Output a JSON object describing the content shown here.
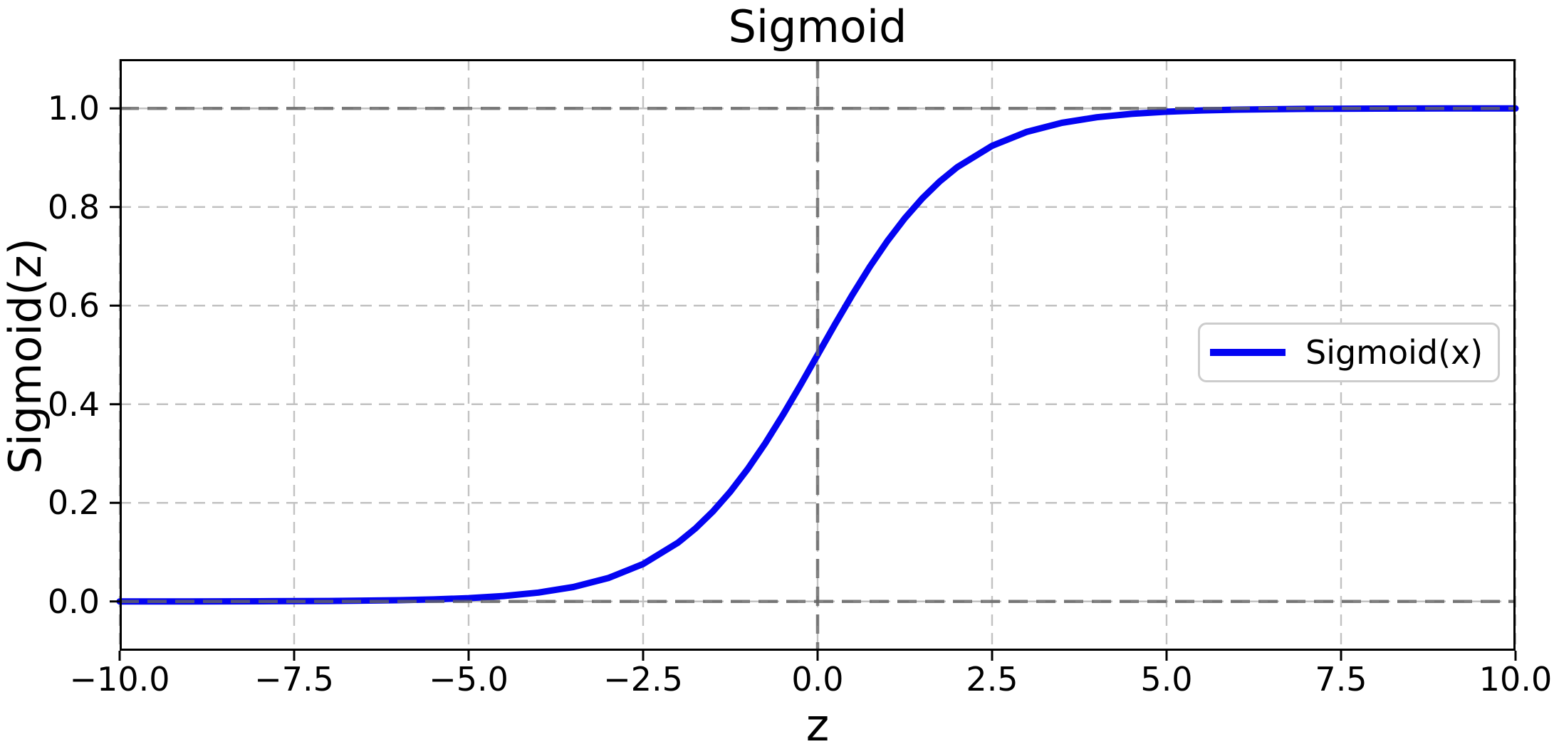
{
  "chart_data": {
    "type": "line",
    "title": "Sigmoid",
    "xlabel": "z",
    "ylabel": "Sigmoid(z)",
    "xlim": [
      -10,
      10
    ],
    "ylim": [
      -0.1,
      1.1
    ],
    "grid": true,
    "grid_linestyle": "dashed",
    "x_ticks": [
      -10,
      -7.5,
      -5,
      -2.5,
      0,
      2.5,
      5,
      7.5,
      10
    ],
    "x_tick_labels": [
      "−10.0",
      "−7.5",
      "−5.0",
      "−2.5",
      "0.0",
      "2.5",
      "5.0",
      "7.5",
      "10.0"
    ],
    "y_ticks": [
      0,
      0.2,
      0.4,
      0.6,
      0.8,
      1.0
    ],
    "y_tick_labels": [
      "0.0",
      "0.2",
      "0.4",
      "0.6",
      "0.8",
      "1.0"
    ],
    "reference_lines": [
      {
        "orientation": "horizontal",
        "value": 0,
        "style": "dashed"
      },
      {
        "orientation": "horizontal",
        "value": 1,
        "style": "dashed"
      },
      {
        "orientation": "vertical",
        "value": 0,
        "style": "dashed"
      }
    ],
    "legend": {
      "position": "center right",
      "entries": [
        {
          "label": "Sigmoid(x)",
          "color": "#0404f2"
        }
      ]
    },
    "series": [
      {
        "name": "Sigmoid(x)",
        "color": "#0404f2",
        "line_width": 9,
        "x": [
          -10,
          -9,
          -8,
          -7,
          -6,
          -5.5,
          -5,
          -4.5,
          -4,
          -3.5,
          -3,
          -2.5,
          -2,
          -1.75,
          -1.5,
          -1.25,
          -1,
          -0.75,
          -0.5,
          -0.25,
          0,
          0.25,
          0.5,
          0.75,
          1,
          1.25,
          1.5,
          1.75,
          2,
          2.5,
          3,
          3.5,
          4,
          4.5,
          5,
          5.5,
          6,
          7,
          8,
          9,
          10
        ],
        "y": [
          5e-05,
          0.00012,
          0.00034,
          0.00091,
          0.00247,
          0.00407,
          0.00669,
          0.01099,
          0.01799,
          0.02931,
          0.04743,
          0.07586,
          0.1192,
          0.14805,
          0.18243,
          0.2227,
          0.26894,
          0.32082,
          0.37754,
          0.43782,
          0.5,
          0.56218,
          0.62246,
          0.67918,
          0.73106,
          0.7773,
          0.81757,
          0.85195,
          0.8808,
          0.92414,
          0.95257,
          0.97069,
          0.98201,
          0.98901,
          0.99331,
          0.99593,
          0.99753,
          0.99909,
          0.99966,
          0.99988,
          0.99995
        ]
      }
    ]
  },
  "colors": {
    "curve": "#0404f2",
    "grid": "#c2c2c2",
    "reference_line_rgba": "rgba(100,100,100,0.82)",
    "spine": "#000000",
    "tick": "#000000",
    "text": "#000000",
    "legend_border": "#cccccc",
    "background": "#ffffff"
  }
}
